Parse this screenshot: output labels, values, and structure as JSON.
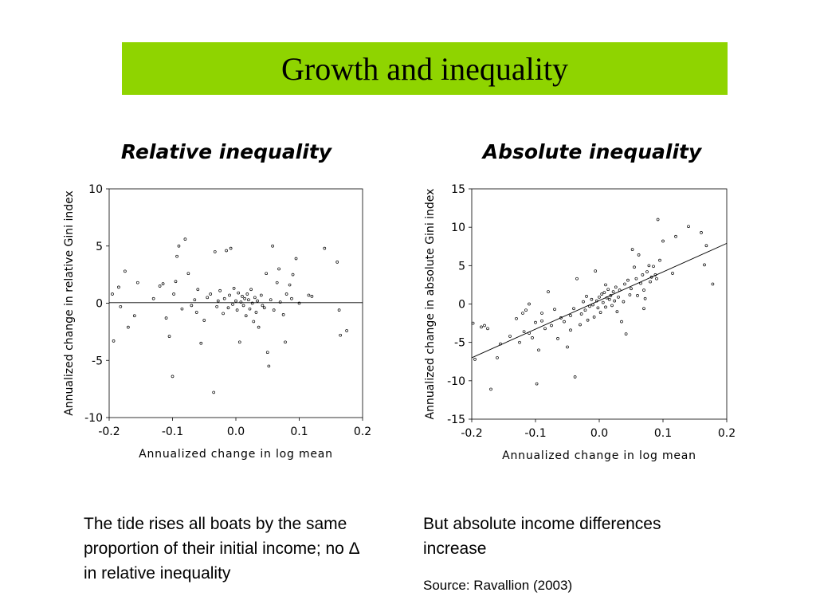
{
  "slide": {
    "title": "Growth and inequality",
    "left_caption": "The tide rises all boats by the same proportion of their initial income; no Δ in relative inequality",
    "right_caption": "But absolute income differences increase",
    "source": "Source: Ravallion (2003)"
  },
  "chart_data": [
    {
      "type": "scatter",
      "title": "Relative inequality",
      "xlabel": "Annualized change in log mean",
      "ylabel": "Annualized change in relative Gini index",
      "xlim": [
        -0.2,
        0.2
      ],
      "ylim": [
        -10,
        10
      ],
      "xticks": [
        "-0.2",
        "-0.1",
        "0.0",
        "0.1",
        "0.2"
      ],
      "yticks": [
        "10",
        "5",
        "0",
        "-5",
        "-10"
      ],
      "xtick_values": [
        -0.2,
        -0.1,
        0.0,
        0.1,
        0.2
      ],
      "ytick_values": [
        10,
        5,
        0,
        -5,
        -10
      ],
      "fit_line": {
        "x": [
          -0.2,
          0.2
        ],
        "y": [
          0.05,
          0.05
        ]
      },
      "points": [
        [
          -0.195,
          0.8
        ],
        [
          -0.193,
          -3.3
        ],
        [
          -0.185,
          1.4
        ],
        [
          -0.182,
          -0.3
        ],
        [
          -0.175,
          2.8
        ],
        [
          -0.17,
          -2.1
        ],
        [
          -0.16,
          -1.1
        ],
        [
          -0.155,
          1.8
        ],
        [
          -0.12,
          1.5
        ],
        [
          -0.115,
          1.7
        ],
        [
          -0.11,
          -1.3
        ],
        [
          -0.105,
          -2.9
        ],
        [
          -0.1,
          -6.4
        ],
        [
          -0.098,
          0.8
        ],
        [
          -0.095,
          1.9
        ],
        [
          -0.093,
          4.1
        ],
        [
          -0.09,
          5
        ],
        [
          -0.085,
          -0.5
        ],
        [
          -0.08,
          5.6
        ],
        [
          -0.075,
          2.6
        ],
        [
          -0.07,
          -0.2
        ],
        [
          -0.065,
          0.3
        ],
        [
          -0.06,
          1.2
        ],
        [
          -0.055,
          -3.5
        ],
        [
          -0.05,
          -1.5
        ],
        [
          -0.045,
          0.5
        ],
        [
          -0.04,
          0.8
        ],
        [
          -0.035,
          -7.8
        ],
        [
          -0.033,
          4.5
        ],
        [
          -0.03,
          -0.3
        ],
        [
          -0.028,
          0.2
        ],
        [
          -0.025,
          1.1
        ],
        [
          -0.02,
          -0.9
        ],
        [
          -0.018,
          0.4
        ],
        [
          -0.015,
          4.6
        ],
        [
          -0.012,
          -0.4
        ],
        [
          -0.01,
          0.7
        ],
        [
          -0.008,
          4.8
        ],
        [
          -0.005,
          -0.1
        ],
        [
          -0.003,
          1.3
        ],
        [
          0.0,
          0.2
        ],
        [
          0.002,
          -0.6
        ],
        [
          0.004,
          0.9
        ],
        [
          0.006,
          -3.4
        ],
        [
          0.008,
          0.1
        ],
        [
          0.01,
          0.6
        ],
        [
          0.012,
          -0.2
        ],
        [
          0.014,
          0.4
        ],
        [
          0.016,
          -1.1
        ],
        [
          0.018,
          0.8
        ],
        [
          0.02,
          0.3
        ],
        [
          0.022,
          -0.5
        ],
        [
          0.024,
          1.2
        ],
        [
          0.026,
          0.0
        ],
        [
          0.028,
          -1.6
        ],
        [
          0.03,
          0.5
        ],
        [
          0.032,
          -0.8
        ],
        [
          0.034,
          0.2
        ],
        [
          0.036,
          -2.1
        ],
        [
          0.04,
          0.7
        ],
        [
          0.045,
          -0.4
        ],
        [
          0.048,
          2.6
        ],
        [
          0.05,
          -4.3
        ],
        [
          0.052,
          -5.5
        ],
        [
          0.055,
          0.3
        ],
        [
          0.058,
          5.0
        ],
        [
          0.06,
          -0.6
        ],
        [
          0.065,
          1.8
        ],
        [
          0.068,
          3.0
        ],
        [
          0.07,
          0.1
        ],
        [
          0.075,
          -1.0
        ],
        [
          0.078,
          -3.4
        ],
        [
          0.08,
          0.8
        ],
        [
          0.085,
          1.6
        ],
        [
          0.088,
          0.4
        ],
        [
          0.09,
          2.5
        ],
        [
          0.095,
          3.9
        ],
        [
          0.1,
          0.0
        ],
        [
          0.115,
          0.7
        ],
        [
          0.12,
          0.6
        ],
        [
          0.14,
          4.8
        ],
        [
          0.16,
          3.6
        ],
        [
          0.165,
          -2.8
        ],
        [
          0.163,
          -0.6
        ],
        [
          0.175,
          -2.4
        ],
        [
          -0.13,
          0.4
        ],
        [
          -0.062,
          -0.8
        ],
        [
          0.042,
          -0.2
        ]
      ]
    },
    {
      "type": "scatter",
      "title": "Absolute inequality",
      "xlabel": "Annualized change in log mean",
      "ylabel": "Annualized change in absolute Gini index",
      "xlim": [
        -0.2,
        0.2
      ],
      "ylim": [
        -15,
        15
      ],
      "xticks": [
        "-0.2",
        "-0.1",
        "0.0",
        "0.1",
        "0.2"
      ],
      "yticks": [
        "15",
        "10",
        "5",
        "0",
        "-5",
        "-10",
        "-15"
      ],
      "xtick_values": [
        -0.2,
        -0.1,
        0.0,
        0.1,
        0.2
      ],
      "ytick_values": [
        15,
        10,
        5,
        0,
        -5,
        -10,
        -15
      ],
      "fit_line": {
        "x": [
          -0.2,
          0.2
        ],
        "y": [
          -7.0,
          7.9
        ]
      },
      "points": [
        [
          -0.198,
          -2.5
        ],
        [
          -0.195,
          -7.2
        ],
        [
          -0.185,
          -3.0
        ],
        [
          -0.18,
          -2.8
        ],
        [
          -0.175,
          -3.2
        ],
        [
          -0.17,
          -11.1
        ],
        [
          -0.16,
          -7.0
        ],
        [
          -0.155,
          -5.2
        ],
        [
          -0.14,
          -4.2
        ],
        [
          -0.13,
          -1.9
        ],
        [
          -0.125,
          -5.0
        ],
        [
          -0.12,
          -1.2
        ],
        [
          -0.118,
          -3.6
        ],
        [
          -0.115,
          -0.8
        ],
        [
          -0.11,
          0.0
        ],
        [
          -0.105,
          -4.4
        ],
        [
          -0.1,
          -2.4
        ],
        [
          -0.098,
          -10.4
        ],
        [
          -0.095,
          -6.0
        ],
        [
          -0.09,
          -1.2
        ],
        [
          -0.085,
          -3.2
        ],
        [
          -0.08,
          1.6
        ],
        [
          -0.075,
          -2.8
        ],
        [
          -0.07,
          -0.7
        ],
        [
          -0.065,
          -4.5
        ],
        [
          -0.06,
          -1.8
        ],
        [
          -0.055,
          -2.3
        ],
        [
          -0.05,
          -5.6
        ],
        [
          -0.045,
          -1.5
        ],
        [
          -0.04,
          -0.6
        ],
        [
          -0.038,
          -9.5
        ],
        [
          -0.035,
          3.3
        ],
        [
          -0.03,
          -2.7
        ],
        [
          -0.028,
          -1.3
        ],
        [
          -0.025,
          0.3
        ],
        [
          -0.022,
          -0.8
        ],
        [
          -0.02,
          1.0
        ],
        [
          -0.018,
          -2.1
        ],
        [
          -0.015,
          -0.3
        ],
        [
          -0.012,
          0.6
        ],
        [
          -0.01,
          -0.1
        ],
        [
          -0.008,
          -1.7
        ],
        [
          -0.006,
          4.3
        ],
        [
          -0.004,
          0.4
        ],
        [
          -0.002,
          -0.5
        ],
        [
          0.0,
          0.9
        ],
        [
          0.002,
          -1.1
        ],
        [
          0.004,
          1.3
        ],
        [
          0.006,
          0.2
        ],
        [
          0.008,
          1.5
        ],
        [
          0.01,
          -0.4
        ],
        [
          0.012,
          0.8
        ],
        [
          0.014,
          1.9
        ],
        [
          0.016,
          0.6
        ],
        [
          0.018,
          1.1
        ],
        [
          0.02,
          -0.2
        ],
        [
          0.022,
          1.6
        ],
        [
          0.024,
          0.4
        ],
        [
          0.026,
          2.2
        ],
        [
          0.028,
          -1.0
        ],
        [
          0.03,
          0.9
        ],
        [
          0.032,
          1.8
        ],
        [
          0.035,
          -2.3
        ],
        [
          0.038,
          0.3
        ],
        [
          0.04,
          2.6
        ],
        [
          0.042,
          -3.9
        ],
        [
          0.045,
          3.1
        ],
        [
          0.048,
          1.2
        ],
        [
          0.05,
          2.0
        ],
        [
          0.052,
          7.1
        ],
        [
          0.055,
          4.8
        ],
        [
          0.058,
          3.3
        ],
        [
          0.06,
          1.1
        ],
        [
          0.062,
          6.4
        ],
        [
          0.065,
          2.7
        ],
        [
          0.068,
          3.8
        ],
        [
          0.07,
          1.8
        ],
        [
          0.072,
          0.7
        ],
        [
          0.075,
          4.2
        ],
        [
          0.078,
          5.0
        ],
        [
          0.08,
          2.9
        ],
        [
          0.082,
          3.5
        ],
        [
          0.085,
          4.9
        ],
        [
          0.088,
          3.8
        ],
        [
          0.09,
          3.3
        ],
        [
          0.092,
          11.0
        ],
        [
          0.095,
          5.7
        ],
        [
          0.1,
          8.2
        ],
        [
          0.115,
          4.0
        ],
        [
          0.12,
          8.8
        ],
        [
          0.14,
          10.1
        ],
        [
          0.16,
          9.3
        ],
        [
          0.165,
          5.1
        ],
        [
          0.168,
          7.6
        ],
        [
          0.178,
          2.6
        ],
        [
          -0.11,
          -3.8
        ],
        [
          -0.09,
          -2.2
        ],
        [
          0.01,
          2.5
        ],
        [
          -0.045,
          -3.4
        ],
        [
          0.07,
          -0.6
        ]
      ]
    }
  ]
}
